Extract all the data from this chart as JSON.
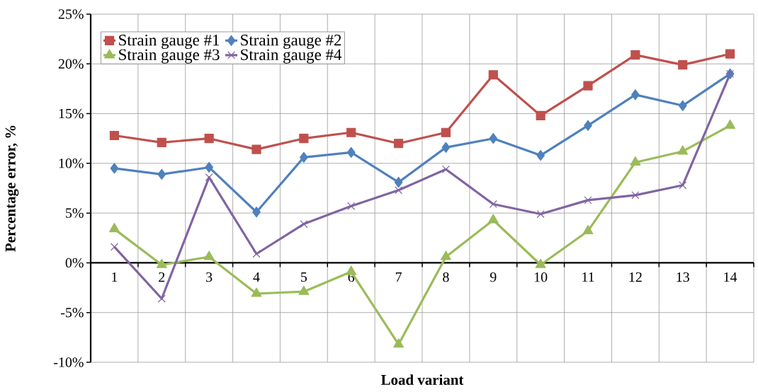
{
  "chart_data": {
    "type": "line",
    "xlabel": "Load variant",
    "ylabel": "Percentage error, %",
    "categories": [
      "1",
      "2",
      "3",
      "4",
      "5",
      "6",
      "7",
      "8",
      "9",
      "10",
      "11",
      "12",
      "13",
      "14"
    ],
    "series": [
      {
        "name": "Strain gauge #1",
        "color": "#c0504d",
        "marker": "square",
        "values": [
          12.8,
          12.1,
          12.5,
          11.4,
          12.5,
          13.1,
          12.0,
          13.1,
          18.9,
          14.8,
          17.8,
          20.9,
          19.9,
          21.0
        ]
      },
      {
        "name": "Strain gauge #2",
        "color": "#4f81bd",
        "marker": "diamond",
        "values": [
          9.5,
          8.9,
          9.6,
          5.1,
          10.6,
          11.1,
          8.1,
          11.6,
          12.5,
          10.8,
          13.8,
          16.9,
          15.8,
          19.0
        ]
      },
      {
        "name": "Strain gauge #3",
        "color": "#9bbb59",
        "marker": "triangle",
        "values": [
          3.4,
          -0.2,
          0.6,
          -3.1,
          -2.9,
          -0.9,
          -8.2,
          0.6,
          4.3,
          -0.2,
          3.2,
          10.1,
          11.2,
          13.8
        ]
      },
      {
        "name": "Strain gauge #4",
        "color": "#8064a2",
        "marker": "cross",
        "values": [
          1.6,
          -3.6,
          8.6,
          0.9,
          3.9,
          5.7,
          7.3,
          9.4,
          5.9,
          4.9,
          6.3,
          6.8,
          7.8,
          19.0
        ]
      }
    ],
    "ylim": [
      -10,
      25
    ],
    "yticks": [
      {
        "value": -10,
        "label": "-10%"
      },
      {
        "value": -5,
        "label": "-5%"
      },
      {
        "value": 0,
        "label": "0%"
      },
      {
        "value": 5,
        "label": "5%"
      },
      {
        "value": 10,
        "label": "10%"
      },
      {
        "value": 15,
        "label": "15%"
      },
      {
        "value": 20,
        "label": "20%"
      },
      {
        "value": 25,
        "label": "25%"
      }
    ],
    "grid": true,
    "legend": "top left",
    "line_style": "solid"
  }
}
